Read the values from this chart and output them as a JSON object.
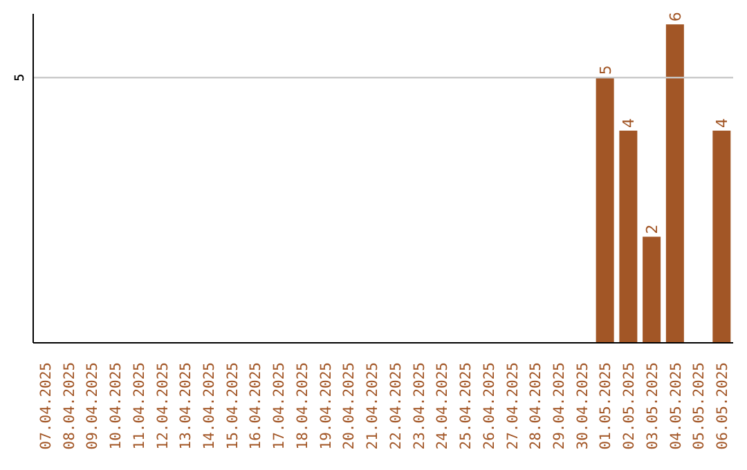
{
  "chart_data": {
    "type": "bar",
    "categories": [
      "07.04.2025",
      "08.04.2025",
      "09.04.2025",
      "10.04.2025",
      "11.04.2025",
      "12.04.2025",
      "13.04.2025",
      "14.04.2025",
      "15.04.2025",
      "16.04.2025",
      "17.04.2025",
      "18.04.2025",
      "19.04.2025",
      "20.04.2025",
      "21.04.2025",
      "22.04.2025",
      "23.04.2025",
      "24.04.2025",
      "25.04.2025",
      "26.04.2025",
      "27.04.2025",
      "28.04.2025",
      "29.04.2025",
      "30.04.2025",
      "01.05.2025",
      "02.05.2025",
      "03.05.2025",
      "04.05.2025",
      "05.05.2025",
      "06.05.2025"
    ],
    "values": [
      null,
      null,
      null,
      null,
      null,
      null,
      null,
      null,
      null,
      null,
      null,
      null,
      null,
      null,
      null,
      null,
      null,
      null,
      null,
      null,
      null,
      null,
      null,
      null,
      5,
      4,
      2,
      6,
      null,
      4
    ],
    "data_labels": true,
    "color": "#a25626",
    "ylim": [
      0,
      6.2
    ],
    "ref_lines": [
      {
        "axis": "y",
        "value": 5,
        "label": "5",
        "color": "#c8c8c8"
      }
    ]
  }
}
